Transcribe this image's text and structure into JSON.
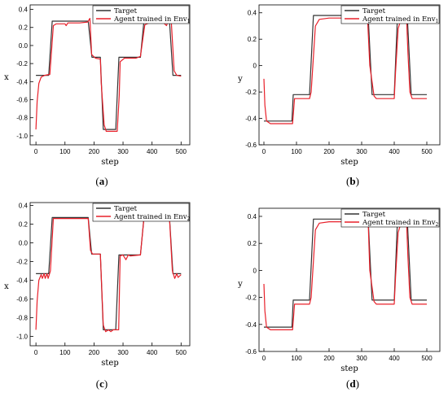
{
  "colors": {
    "target": "#333333",
    "agent": "#e8202a"
  },
  "chart_data": [
    {
      "type": "line",
      "panel": "a",
      "caption_letter": "a",
      "xlabel": "step",
      "ylabel": "x",
      "xlim": [
        -20,
        530
      ],
      "ylim": [
        -1.1,
        0.45
      ],
      "xticks": [
        0,
        100,
        200,
        300,
        400,
        500
      ],
      "yticks": [
        -1.0,
        -0.8,
        -0.6,
        -0.4,
        -0.2,
        0.0,
        0.2,
        0.4
      ],
      "ytick_labels": [
        "-1.0",
        "-0.8",
        "-0.6",
        "-0.4",
        "-0.2",
        "0.0",
        "0.2",
        "0.4"
      ],
      "legend": {
        "target_label": "Target",
        "agent_label": "Agent trained in Env",
        "agent_sub": "1",
        "position": "top-right"
      },
      "series": [
        {
          "name": "Target",
          "x": [
            0,
            44,
            56,
            180,
            193,
            222,
            232,
            275,
            286,
            360,
            372,
            460,
            472,
            500
          ],
          "y": [
            -0.33,
            -0.33,
            0.27,
            0.27,
            -0.13,
            -0.13,
            -0.93,
            -0.93,
            -0.13,
            -0.13,
            0.27,
            0.27,
            -0.33,
            -0.33
          ]
        },
        {
          "name": "Agent trained in Env1",
          "x": [
            0,
            4,
            10,
            18,
            30,
            48,
            60,
            70,
            100,
            104,
            110,
            150,
            178,
            186,
            192,
            205,
            222,
            225,
            235,
            242,
            262,
            280,
            287,
            290,
            305,
            330,
            345,
            360,
            375,
            390,
            420,
            440,
            450,
            455,
            462,
            466,
            476,
            485,
            500
          ],
          "y": [
            -0.93,
            -0.62,
            -0.42,
            -0.35,
            -0.33,
            -0.32,
            0.22,
            0.24,
            0.24,
            0.22,
            0.25,
            0.25,
            0.26,
            0.3,
            -0.1,
            -0.14,
            -0.15,
            -0.42,
            -0.88,
            -0.95,
            -0.95,
            -0.95,
            -0.55,
            -0.18,
            -0.14,
            -0.14,
            -0.14,
            -0.12,
            0.23,
            0.25,
            0.25,
            0.25,
            0.22,
            0.27,
            0.31,
            0.28,
            -0.28,
            -0.33,
            -0.34
          ]
        }
      ]
    },
    {
      "type": "line",
      "panel": "b",
      "caption_letter": "b",
      "xlabel": "step",
      "ylabel": "y",
      "xlim": [
        -15,
        540
      ],
      "ylim": [
        -0.6,
        0.46
      ],
      "xticks": [
        0,
        100,
        200,
        300,
        400,
        500
      ],
      "yticks": [
        -0.6,
        -0.4,
        -0.2,
        0.0,
        0.2,
        0.4
      ],
      "ytick_labels": [
        "-0.6",
        "-0.4",
        "-0.2",
        "0",
        "0.2",
        "0.4"
      ],
      "legend": {
        "target_label": "Target",
        "agent_label": "Agent trained in Env",
        "agent_sub": "1",
        "position": "top-right"
      },
      "series": [
        {
          "name": "Target",
          "x": [
            0,
            86,
            90,
            140,
            152,
            320,
            332,
            400,
            410,
            440,
            452,
            500
          ],
          "y": [
            -0.42,
            -0.42,
            -0.22,
            -0.22,
            0.38,
            0.38,
            -0.22,
            -0.22,
            0.38,
            0.38,
            -0.22,
            -0.22
          ]
        },
        {
          "name": "Agent trained in Env1",
          "x": [
            0,
            3,
            8,
            20,
            80,
            88,
            94,
            100,
            140,
            145,
            158,
            170,
            200,
            250,
            300,
            304,
            308,
            318,
            325,
            338,
            345,
            400,
            404,
            412,
            418,
            428,
            438,
            442,
            448,
            455,
            500
          ],
          "y": [
            -0.1,
            -0.3,
            -0.42,
            -0.44,
            -0.44,
            -0.44,
            -0.25,
            -0.25,
            -0.25,
            -0.2,
            0.3,
            0.35,
            0.36,
            0.36,
            0.36,
            0.33,
            0.36,
            0.36,
            0.0,
            -0.23,
            -0.25,
            -0.25,
            -0.05,
            0.28,
            0.33,
            0.35,
            0.35,
            0.1,
            -0.2,
            -0.25,
            -0.25
          ]
        }
      ]
    },
    {
      "type": "line",
      "panel": "c",
      "caption_letter": "c",
      "xlabel": "step",
      "ylabel": "x",
      "xlim": [
        -20,
        530
      ],
      "ylim": [
        -1.1,
        0.43
      ],
      "xticks": [
        0,
        100,
        200,
        300,
        400,
        500
      ],
      "yticks": [
        -1.0,
        -0.8,
        -0.6,
        -0.4,
        -0.2,
        0.0,
        0.2,
        0.4
      ],
      "ytick_labels": [
        "-1.0",
        "-0.8",
        "-0.6",
        "-0.4",
        "-0.2",
        "0.0",
        "0.2",
        "0.4"
      ],
      "legend": {
        "target_label": "Target",
        "agent_label": "Agent trained in Env",
        "agent_sub": "2",
        "position": "top-right"
      },
      "series": [
        {
          "name": "Target",
          "x": [
            0,
            44,
            56,
            180,
            192,
            222,
            232,
            275,
            286,
            360,
            372,
            460,
            472,
            500
          ],
          "y": [
            -0.33,
            -0.33,
            0.27,
            0.27,
            -0.12,
            -0.12,
            -0.93,
            -0.93,
            -0.13,
            -0.13,
            0.27,
            0.27,
            -0.33,
            -0.33
          ]
        },
        {
          "name": "Agent trained in Env2",
          "x": [
            0,
            4,
            10,
            18,
            22,
            28,
            32,
            38,
            42,
            50,
            60,
            180,
            188,
            195,
            222,
            232,
            240,
            250,
            258,
            266,
            285,
            290,
            300,
            310,
            318,
            325,
            360,
            372,
            460,
            470,
            478,
            485,
            490,
            500
          ],
          "y": [
            -0.93,
            -0.62,
            -0.4,
            -0.34,
            -0.38,
            -0.33,
            -0.38,
            -0.33,
            -0.38,
            -0.3,
            0.26,
            0.26,
            -0.08,
            -0.12,
            -0.12,
            -0.88,
            -0.95,
            -0.93,
            -0.95,
            -0.93,
            -0.93,
            -0.14,
            -0.13,
            -0.18,
            -0.13,
            -0.14,
            -0.13,
            0.26,
            0.26,
            -0.3,
            -0.38,
            -0.33,
            -0.37,
            -0.34
          ]
        }
      ]
    },
    {
      "type": "line",
      "panel": "d",
      "caption_letter": "d",
      "xlabel": "step",
      "ylabel": "y",
      "xlim": [
        -15,
        540
      ],
      "ylim": [
        -0.6,
        0.46
      ],
      "xticks": [
        0,
        100,
        200,
        300,
        400,
        500
      ],
      "yticks": [
        -0.6,
        -0.4,
        -0.2,
        0.0,
        0.2,
        0.4
      ],
      "ytick_labels": [
        "-0.6",
        "-0.4",
        "-0.2",
        "0",
        "0.2",
        "0.4"
      ],
      "legend": {
        "target_label": "Target",
        "agent_label": "Agent trained in Env",
        "agent_sub": "2",
        "position": "top-right"
      },
      "series": [
        {
          "name": "Target",
          "x": [
            0,
            86,
            90,
            140,
            152,
            320,
            332,
            400,
            410,
            440,
            452,
            500
          ],
          "y": [
            -0.42,
            -0.42,
            -0.22,
            -0.22,
            0.38,
            0.38,
            -0.22,
            -0.22,
            0.38,
            0.38,
            -0.22,
            -0.22
          ]
        },
        {
          "name": "Agent trained in Env2",
          "x": [
            0,
            3,
            8,
            20,
            80,
            88,
            94,
            100,
            140,
            145,
            158,
            170,
            200,
            250,
            280,
            284,
            288,
            292,
            320,
            325,
            338,
            345,
            400,
            404,
            412,
            418,
            428,
            438,
            442,
            448,
            455,
            500
          ],
          "y": [
            -0.1,
            -0.3,
            -0.42,
            -0.44,
            -0.44,
            -0.44,
            -0.25,
            -0.25,
            -0.25,
            -0.2,
            0.3,
            0.35,
            0.36,
            0.36,
            0.36,
            0.4,
            0.36,
            0.36,
            0.36,
            0.0,
            -0.23,
            -0.25,
            -0.25,
            -0.05,
            0.28,
            0.33,
            0.35,
            0.35,
            0.1,
            -0.2,
            -0.25,
            -0.25
          ]
        }
      ]
    }
  ]
}
